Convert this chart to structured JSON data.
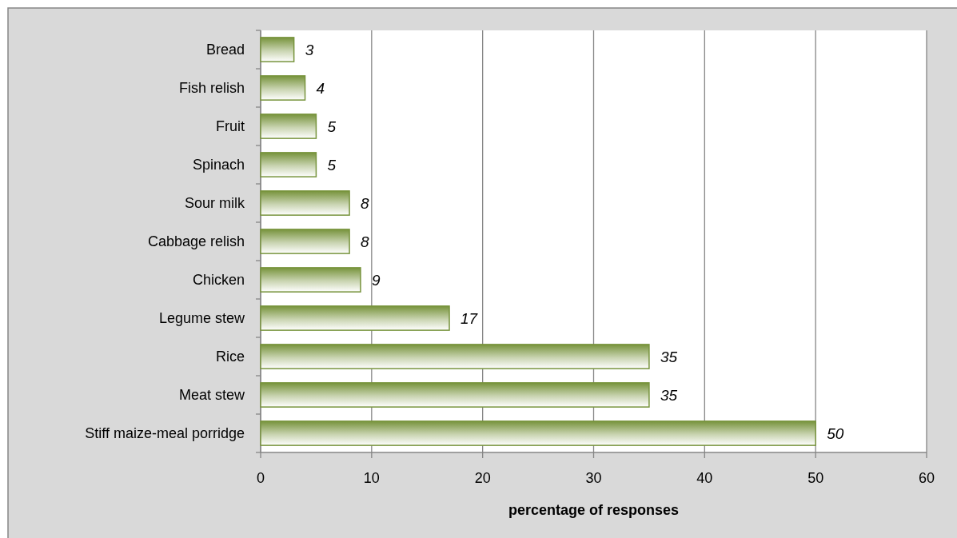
{
  "chart_data": {
    "type": "bar",
    "orientation": "horizontal",
    "xlabel": "percentage of responses",
    "categories": [
      "Bread",
      "Fish relish",
      "Fruit",
      "Spinach",
      "Sour milk",
      "Cabbage relish",
      "Chicken",
      "Legume stew",
      "Rice",
      "Meat stew",
      "Stiff maize-meal porridge"
    ],
    "values": [
      3,
      4,
      5,
      5,
      8,
      8,
      9,
      17,
      35,
      35,
      50
    ],
    "color": "#77933c",
    "xlim": [
      0,
      60
    ],
    "xticks": [
      0,
      10,
      20,
      30,
      40,
      50,
      60
    ],
    "grid": "x",
    "data_labels": true
  }
}
